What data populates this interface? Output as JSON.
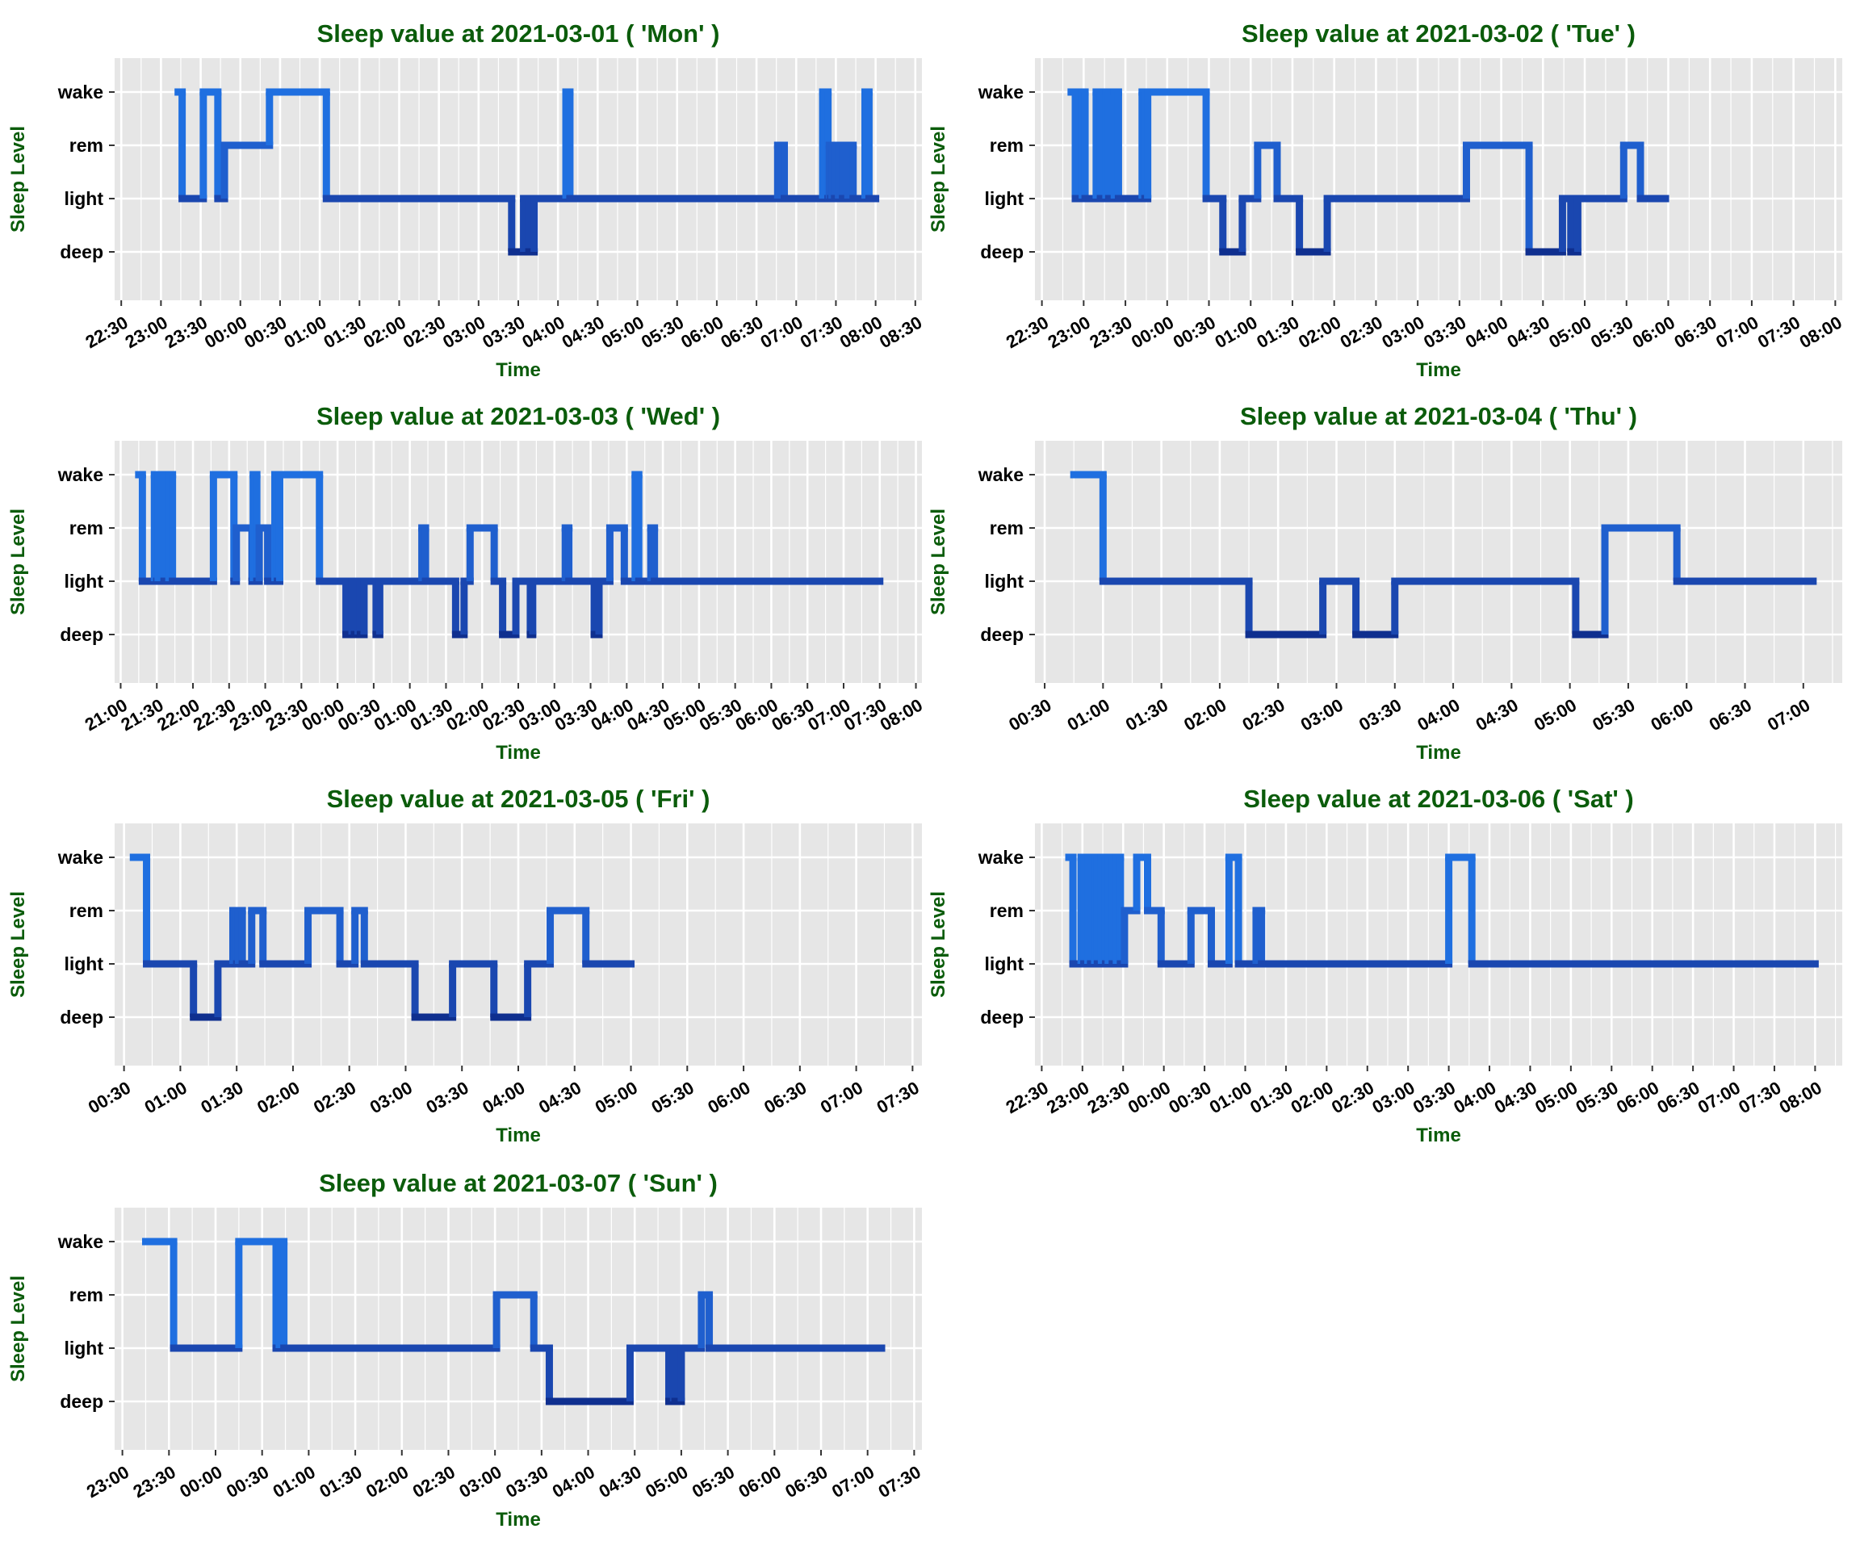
{
  "colors": {
    "panel_bg": "#e6e6e6",
    "grid": "#ffffff",
    "title": "#0b5c0b",
    "axis_label": "#0b5c0b",
    "tick_text": "#000000",
    "level_colors": {
      "wake": "#1f6fe0",
      "rem": "#1f5fce",
      "light": "#1a47b0",
      "deep": "#0f2f8f"
    }
  },
  "levels": [
    "deep",
    "light",
    "rem",
    "wake"
  ],
  "chart_data": [
    {
      "type": "line",
      "title": "Sleep value at 2021-03-01 ( 'Mon' )",
      "xlabel": "Time",
      "ylabel": "Sleep Level",
      "xlim": [
        "22:25",
        "08:35"
      ],
      "xticks": [
        "22:30",
        "23:00",
        "23:30",
        "00:00",
        "00:30",
        "01:00",
        "01:30",
        "02:00",
        "02:30",
        "03:00",
        "03:30",
        "04:00",
        "04:30",
        "05:00",
        "05:30",
        "06:00",
        "06:30",
        "07:00",
        "07:30",
        "08:00",
        "08:30"
      ],
      "steps": [
        [
          "23:13",
          "wake"
        ],
        [
          "23:16",
          "light"
        ],
        [
          "23:32",
          "wake"
        ],
        [
          "23:43",
          "light"
        ],
        [
          "23:48",
          "rem"
        ],
        [
          "00:22",
          "wake"
        ],
        [
          "01:05",
          "light"
        ],
        [
          "03:25",
          "deep"
        ],
        [
          "03:34",
          "light"
        ],
        [
          "03:38",
          "deep"
        ],
        [
          "03:42",
          "light"
        ],
        [
          "04:06",
          "wake"
        ],
        [
          "04:09",
          "light"
        ],
        [
          "06:46",
          "rem"
        ],
        [
          "06:51",
          "light"
        ],
        [
          "07:20",
          "wake"
        ],
        [
          "07:24",
          "light"
        ],
        [
          "07:25",
          "rem"
        ],
        [
          "07:26",
          "light"
        ],
        [
          "07:27",
          "rem"
        ],
        [
          "07:29",
          "light"
        ],
        [
          "07:32",
          "rem"
        ],
        [
          "07:35",
          "light"
        ],
        [
          "07:39",
          "rem"
        ],
        [
          "07:43",
          "light"
        ],
        [
          "07:52",
          "wake"
        ],
        [
          "07:55",
          "light"
        ],
        [
          "08:00",
          "end"
        ]
      ]
    },
    {
      "type": "line",
      "title": "Sleep value at 2021-03-02 ( 'Tue' )",
      "xlabel": "Time",
      "ylabel": "Sleep Level",
      "xlim": [
        "22:25",
        "08:05"
      ],
      "xticks": [
        "22:30",
        "23:00",
        "23:30",
        "00:00",
        "00:30",
        "01:00",
        "01:30",
        "02:00",
        "02:30",
        "03:00",
        "03:30",
        "04:00",
        "04:30",
        "05:00",
        "05:30",
        "06:00",
        "06:30",
        "07:00",
        "07:30",
        "08:00"
      ],
      "steps": [
        [
          "22:51",
          "wake"
        ],
        [
          "22:54",
          "light"
        ],
        [
          "22:59",
          "wake"
        ],
        [
          "23:01",
          "light"
        ],
        [
          "23:09",
          "wake"
        ],
        [
          "23:12",
          "light"
        ],
        [
          "23:16",
          "wake"
        ],
        [
          "23:18",
          "light"
        ],
        [
          "23:22",
          "wake"
        ],
        [
          "23:25",
          "light"
        ],
        [
          "23:42",
          "wake"
        ],
        [
          "23:44",
          "light"
        ],
        [
          "23:46",
          "wake"
        ],
        [
          "00:28",
          "light"
        ],
        [
          "00:40",
          "deep"
        ],
        [
          "00:54",
          "light"
        ],
        [
          "01:05",
          "rem"
        ],
        [
          "01:19",
          "light"
        ],
        [
          "01:35",
          "deep"
        ],
        [
          "01:55",
          "light"
        ],
        [
          "03:35",
          "rem"
        ],
        [
          "04:20",
          "deep"
        ],
        [
          "04:44",
          "light"
        ],
        [
          "04:50",
          "deep"
        ],
        [
          "04:55",
          "light"
        ],
        [
          "05:28",
          "rem"
        ],
        [
          "05:40",
          "light"
        ],
        [
          "05:58",
          "end"
        ]
      ]
    },
    {
      "type": "line",
      "title": "Sleep value at 2021-03-03 ( 'Wed' )",
      "xlabel": "Time",
      "ylabel": "Sleep Level",
      "xlim": [
        "20:55",
        "08:05"
      ],
      "xticks": [
        "21:00",
        "21:30",
        "22:00",
        "22:30",
        "23:00",
        "23:30",
        "00:00",
        "00:30",
        "01:00",
        "01:30",
        "02:00",
        "02:30",
        "03:00",
        "03:30",
        "04:00",
        "04:30",
        "05:00",
        "05:30",
        "06:00",
        "06:30",
        "07:00",
        "07:30",
        "08:00"
      ],
      "steps": [
        [
          "21:15",
          "wake"
        ],
        [
          "21:18",
          "light"
        ],
        [
          "21:28",
          "wake"
        ],
        [
          "21:30",
          "light"
        ],
        [
          "21:31",
          "wake"
        ],
        [
          "21:36",
          "light"
        ],
        [
          "21:40",
          "wake"
        ],
        [
          "21:43",
          "light"
        ],
        [
          "22:17",
          "wake"
        ],
        [
          "22:34",
          "light"
        ],
        [
          "22:36",
          "rem"
        ],
        [
          "22:49",
          "light"
        ],
        [
          "22:50",
          "wake"
        ],
        [
          "22:53",
          "light"
        ],
        [
          "22:55",
          "rem"
        ],
        [
          "23:02",
          "light"
        ],
        [
          "23:08",
          "wake"
        ],
        [
          "23:10",
          "light"
        ],
        [
          "23:12",
          "wake"
        ],
        [
          "23:45",
          "light"
        ],
        [
          "00:07",
          "deep"
        ],
        [
          "00:12",
          "light"
        ],
        [
          "00:14",
          "deep"
        ],
        [
          "00:17",
          "light"
        ],
        [
          "00:19",
          "deep"
        ],
        [
          "00:22",
          "light"
        ],
        [
          "00:32",
          "deep"
        ],
        [
          "00:35",
          "light"
        ],
        [
          "01:10",
          "rem"
        ],
        [
          "01:13",
          "light"
        ],
        [
          "01:38",
          "deep"
        ],
        [
          "01:45",
          "light"
        ],
        [
          "01:50",
          "rem"
        ],
        [
          "02:10",
          "light"
        ],
        [
          "02:17",
          "deep"
        ],
        [
          "02:28",
          "light"
        ],
        [
          "02:40",
          "deep"
        ],
        [
          "02:42",
          "light"
        ],
        [
          "03:09",
          "rem"
        ],
        [
          "03:12",
          "light"
        ],
        [
          "03:33",
          "deep"
        ],
        [
          "03:37",
          "light"
        ],
        [
          "03:46",
          "rem"
        ],
        [
          "03:58",
          "light"
        ],
        [
          "04:07",
          "wake"
        ],
        [
          "04:10",
          "light"
        ],
        [
          "04:20",
          "rem"
        ],
        [
          "04:23",
          "light"
        ],
        [
          "07:30",
          "end"
        ]
      ]
    },
    {
      "type": "line",
      "title": "Sleep value at 2021-03-04 ( 'Thu' )",
      "xlabel": "Time",
      "ylabel": "Sleep Level",
      "xlim": [
        "00:25",
        "07:20"
      ],
      "xticks": [
        "00:30",
        "01:00",
        "01:30",
        "02:00",
        "02:30",
        "03:00",
        "03:30",
        "04:00",
        "04:30",
        "05:00",
        "05:30",
        "06:00",
        "06:30",
        "07:00"
      ],
      "steps": [
        [
          "00:45",
          "wake"
        ],
        [
          "01:00",
          "light"
        ],
        [
          "02:15",
          "deep"
        ],
        [
          "02:53",
          "light"
        ],
        [
          "03:10",
          "deep"
        ],
        [
          "03:30",
          "light"
        ],
        [
          "05:03",
          "deep"
        ],
        [
          "05:18",
          "rem"
        ],
        [
          "05:55",
          "light"
        ],
        [
          "07:05",
          "end"
        ]
      ]
    },
    {
      "type": "line",
      "title": "Sleep value at 2021-03-05 ( 'Fri' )",
      "xlabel": "Time",
      "ylabel": "Sleep Level",
      "xlim": [
        "00:25",
        "07:35"
      ],
      "xticks": [
        "00:30",
        "01:00",
        "01:30",
        "02:00",
        "02:30",
        "03:00",
        "03:30",
        "04:00",
        "04:30",
        "05:00",
        "05:30",
        "06:00",
        "06:30",
        "07:00",
        "07:30"
      ],
      "steps": [
        [
          "00:35",
          "wake"
        ],
        [
          "00:42",
          "light"
        ],
        [
          "01:07",
          "deep"
        ],
        [
          "01:20",
          "light"
        ],
        [
          "01:28",
          "rem"
        ],
        [
          "01:30",
          "light"
        ],
        [
          "01:31",
          "rem"
        ],
        [
          "01:33",
          "light"
        ],
        [
          "01:38",
          "rem"
        ],
        [
          "01:44",
          "light"
        ],
        [
          "02:08",
          "rem"
        ],
        [
          "02:25",
          "light"
        ],
        [
          "02:33",
          "rem"
        ],
        [
          "02:38",
          "light"
        ],
        [
          "03:05",
          "deep"
        ],
        [
          "03:25",
          "light"
        ],
        [
          "03:47",
          "deep"
        ],
        [
          "04:05",
          "light"
        ],
        [
          "04:17",
          "rem"
        ],
        [
          "04:36",
          "light"
        ],
        [
          "05:00",
          "end"
        ]
      ]
    },
    {
      "type": "line",
      "title": "Sleep value at 2021-03-06 ( 'Sat' )",
      "xlabel": "Time",
      "ylabel": "Sleep Level",
      "xlim": [
        "22:25",
        "08:20"
      ],
      "xticks": [
        "22:30",
        "23:00",
        "23:30",
        "00:00",
        "00:30",
        "01:00",
        "01:30",
        "02:00",
        "02:30",
        "03:00",
        "03:30",
        "04:00",
        "04:30",
        "05:00",
        "05:30",
        "06:00",
        "06:30",
        "07:00",
        "07:30",
        "08:00"
      ],
      "steps": [
        [
          "22:50",
          "wake"
        ],
        [
          "22:53",
          "light"
        ],
        [
          "22:59",
          "wake"
        ],
        [
          "23:01",
          "light"
        ],
        [
          "23:04",
          "wake"
        ],
        [
          "23:06",
          "light"
        ],
        [
          "23:09",
          "wake"
        ],
        [
          "23:11",
          "light"
        ],
        [
          "23:14",
          "wake"
        ],
        [
          "23:17",
          "light"
        ],
        [
          "23:19",
          "wake"
        ],
        [
          "23:22",
          "light"
        ],
        [
          "23:25",
          "wake"
        ],
        [
          "23:28",
          "light"
        ],
        [
          "23:31",
          "rem"
        ],
        [
          "23:40",
          "wake"
        ],
        [
          "23:48",
          "rem"
        ],
        [
          "23:58",
          "light"
        ],
        [
          "00:20",
          "rem"
        ],
        [
          "00:35",
          "light"
        ],
        [
          "00:48",
          "wake"
        ],
        [
          "00:55",
          "light"
        ],
        [
          "01:08",
          "rem"
        ],
        [
          "01:12",
          "light"
        ],
        [
          "03:30",
          "wake"
        ],
        [
          "03:47",
          "light"
        ],
        [
          "08:00",
          "end"
        ]
      ]
    },
    {
      "type": "line",
      "title": "Sleep value at 2021-03-07 ( 'Sun' )",
      "xlabel": "Time",
      "ylabel": "Sleep Level",
      "xlim": [
        "22:55",
        "07:35"
      ],
      "xticks": [
        "23:00",
        "23:30",
        "00:00",
        "00:30",
        "01:00",
        "01:30",
        "02:00",
        "02:30",
        "03:00",
        "03:30",
        "04:00",
        "04:30",
        "05:00",
        "05:30",
        "06:00",
        "06:30",
        "07:00",
        "07:30"
      ],
      "steps": [
        [
          "23:15",
          "wake"
        ],
        [
          "23:33",
          "light"
        ],
        [
          "00:15",
          "wake"
        ],
        [
          "00:39",
          "light"
        ],
        [
          "00:41",
          "wake"
        ],
        [
          "00:44",
          "light"
        ],
        [
          "03:01",
          "rem"
        ],
        [
          "03:25",
          "light"
        ],
        [
          "03:35",
          "deep"
        ],
        [
          "04:27",
          "light"
        ],
        [
          "04:52",
          "deep"
        ],
        [
          "04:55",
          "light"
        ],
        [
          "04:56",
          "deep"
        ],
        [
          "05:00",
          "light"
        ],
        [
          "05:13",
          "rem"
        ],
        [
          "05:18",
          "light"
        ],
        [
          "07:09",
          "end"
        ]
      ]
    }
  ]
}
